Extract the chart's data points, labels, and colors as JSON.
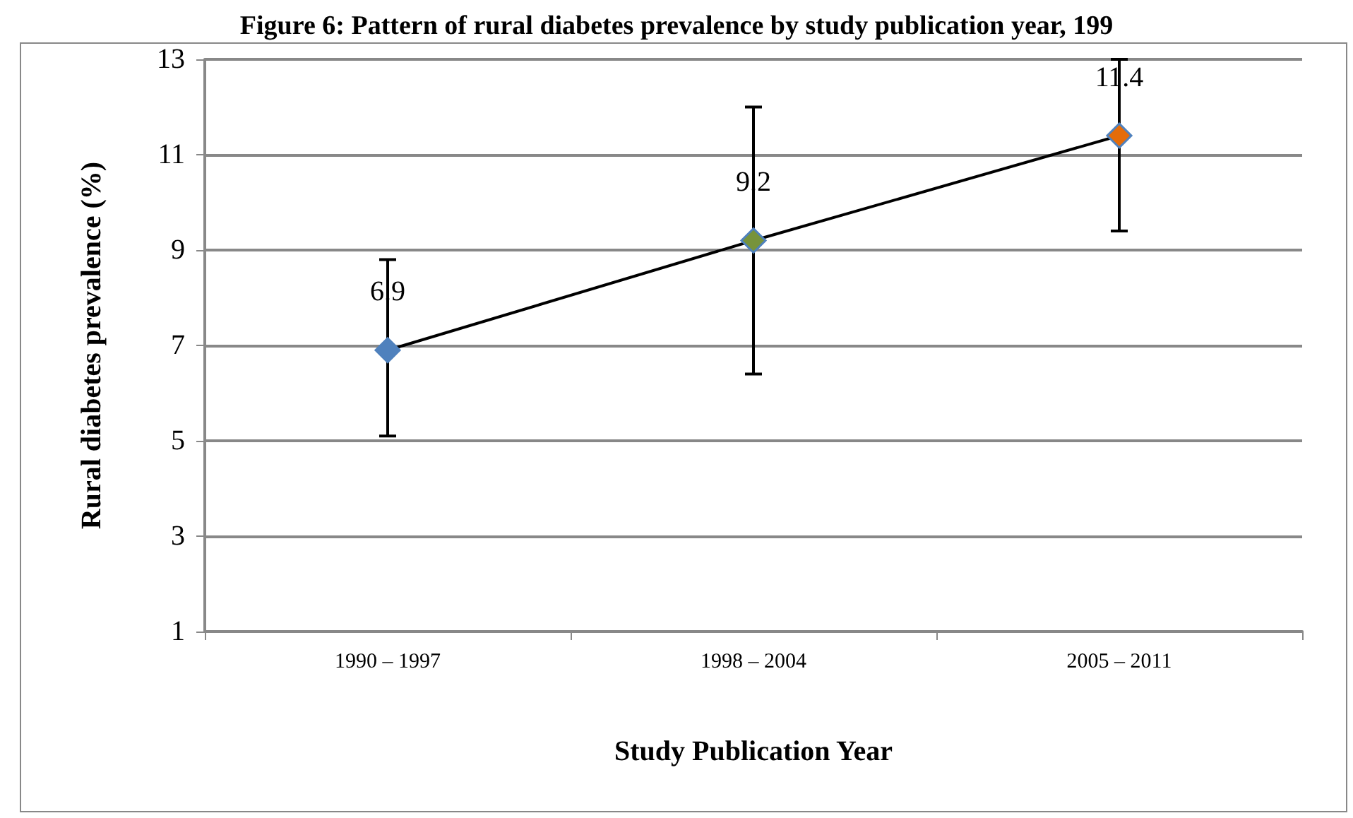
{
  "chart_data": {
    "type": "line",
    "title": "Figure 6: Pattern of rural diabetes prevalence by study publication year, 199",
    "xlabel": "Study Publication Year",
    "ylabel": "Rural diabetes prevalence (%)",
    "categories": [
      "1990 – 1997",
      "1998 – 2004",
      "2005 – 2011"
    ],
    "series": [
      {
        "color": "#000000",
        "colors": [
          "#4f81bd",
          "#77933c",
          "#e46c0a"
        ],
        "values": [
          6.9,
          9.2,
          11.4
        ],
        "errors": [
          [
            5.1,
            8.8
          ],
          [
            6.4,
            12.0
          ],
          [
            9.4,
            13
          ]
        ]
      }
    ],
    "ylim": [
      1,
      13
    ],
    "yticks": [
      1,
      3,
      5,
      7,
      9,
      11,
      13
    ],
    "grid": "y",
    "marker": "diamond",
    "line_style": "solid",
    "data_labels": true
  }
}
